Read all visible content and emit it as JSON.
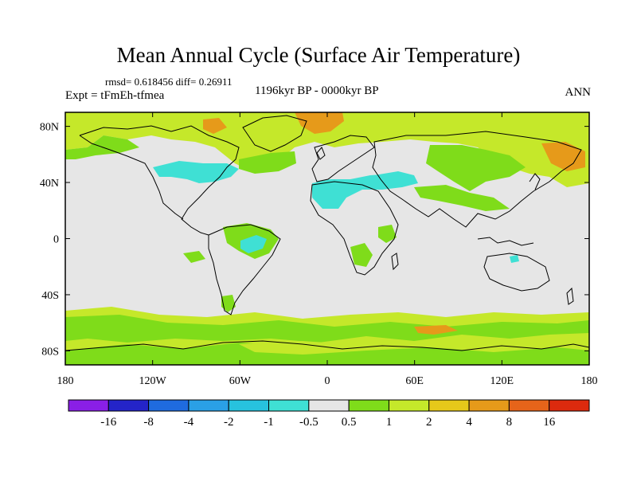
{
  "title": "Mean Annual Cycle (Surface Air Temperature)",
  "stats": "rmsd= 0.618456 diff= 0.26911",
  "period": "1196kyr BP - 0000kyr BP",
  "experiment": "Expt = tFmEh-tfmea",
  "season": "ANN",
  "lat_labels": [
    "80N",
    "40N",
    "0",
    "40S",
    "80S"
  ],
  "lat_values": [
    80,
    40,
    0,
    -40,
    -80
  ],
  "lon_labels": [
    "180",
    "120W",
    "60W",
    "0",
    "60E",
    "120E",
    "180"
  ],
  "lon_values": [
    -180,
    -120,
    -60,
    0,
    60,
    120,
    180
  ],
  "colorbar": {
    "colors": [
      "#8a1fe6",
      "#2424c8",
      "#1f6bdf",
      "#2aa0e6",
      "#27c2de",
      "#3fe0d4",
      "#e6e6e6",
      "#7fdc1a",
      "#c5e82a",
      "#e6c81a",
      "#e69a1a",
      "#e6641a",
      "#dc2a0e"
    ],
    "labels": [
      "-16",
      "-8",
      "-4",
      "-2",
      "-1",
      "-0.5",
      "0.5",
      "1",
      "2",
      "4",
      "8",
      "16"
    ]
  },
  "colors": {
    "background_neutral": "#e6e6e6",
    "green": "#7fdc1a",
    "yellow_green": "#c5e82a",
    "orange": "#e69a1a",
    "cyan": "#3fe0d4",
    "light_cyan": "#27c2de"
  }
}
